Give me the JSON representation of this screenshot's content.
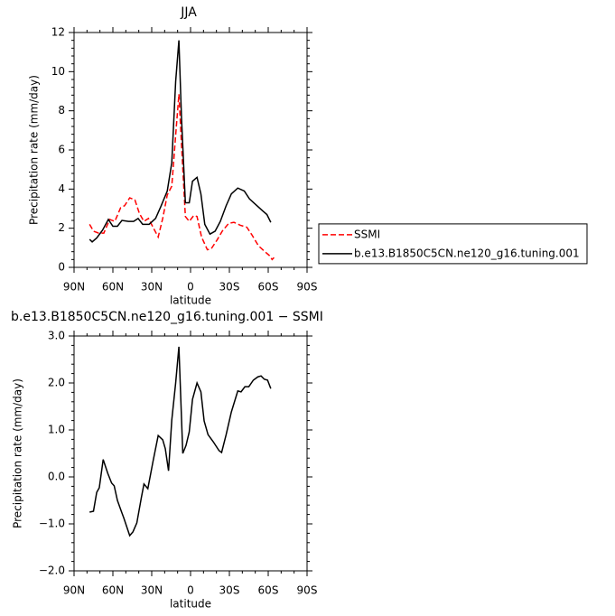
{
  "chart_data": [
    {
      "type": "line",
      "title": "JJA",
      "xlabel": "latitude",
      "ylabel": "Precipitation rate (mm/day)",
      "xlim": [
        90,
        -90
      ],
      "ylim": [
        0,
        12
      ],
      "xticks": [
        {
          "value": 90,
          "label": "90N"
        },
        {
          "value": 60,
          "label": "60N"
        },
        {
          "value": 30,
          "label": "30N"
        },
        0,
        {
          "value": -30,
          "label": "30S"
        },
        {
          "value": -60,
          "label": "60S"
        },
        {
          "value": -90,
          "label": "90S"
        }
      ],
      "yticks": [
        0,
        2,
        4,
        6,
        8,
        10,
        12
      ],
      "legend": "right",
      "series": [
        {
          "name": "SSMI",
          "color": "#ff0000",
          "linestyle": "dashed",
          "x": [
            78,
            75,
            71,
            67,
            62.5,
            58.5,
            54,
            51,
            47,
            43,
            39.5,
            36,
            32.5,
            29,
            25,
            21.5,
            18,
            14.5,
            11.5,
            9,
            7,
            4,
            1,
            -2.5,
            -5,
            -8.5,
            -13,
            -16,
            -20.5,
            -24.5,
            -29.5,
            -33.5,
            -38.5,
            -43.5,
            -47.5,
            -52.5,
            -57.5,
            -61,
            -63,
            -64.5
          ],
          "values": [
            2.2,
            1.85,
            1.75,
            1.75,
            2.45,
            2.35,
            3.05,
            3.15,
            3.55,
            3.45,
            2.75,
            2.35,
            2.5,
            2.05,
            1.55,
            2.5,
            3.7,
            4.15,
            6.75,
            8.85,
            6.3,
            2.6,
            2.35,
            2.65,
            2.6,
            1.55,
            0.9,
            0.95,
            1.4,
            1.85,
            2.25,
            2.3,
            2.15,
            2.05,
            1.65,
            1.1,
            0.8,
            0.6,
            0.4,
            0.5
          ]
        },
        {
          "name": "b.e13.B1850C5CN.ne120_g16.tuning.001",
          "color": "#000000",
          "linestyle": "solid",
          "x": [
            78,
            76,
            72.5,
            68,
            63.5,
            60,
            56.5,
            53,
            48,
            44,
            40.5,
            37,
            32,
            27,
            23,
            18,
            14.5,
            11.5,
            9,
            7,
            4,
            1,
            -1.5,
            -5,
            -8,
            -11,
            -15,
            -19,
            -23,
            -27.5,
            -31.5,
            -36.5,
            -41.5,
            -45.5,
            -50.5,
            -55.5,
            -59,
            -62
          ],
          "values": [
            1.43,
            1.3,
            1.5,
            1.9,
            2.45,
            2.1,
            2.1,
            2.4,
            2.35,
            2.35,
            2.5,
            2.2,
            2.2,
            2.5,
            3.1,
            3.9,
            5.35,
            9.5,
            11.6,
            7.65,
            3.3,
            3.3,
            4.4,
            4.6,
            3.75,
            2.2,
            1.7,
            1.85,
            2.35,
            3.15,
            3.75,
            4.05,
            3.9,
            3.5,
            3.2,
            2.9,
            2.7,
            2.3
          ]
        }
      ]
    },
    {
      "type": "line",
      "title": "b.e13.B1850C5CN.ne120_g16.tuning.001 − SSMI",
      "xlabel": "latitude",
      "ylabel": "Precipitation rate (mm/day)",
      "xlim": [
        90,
        -90
      ],
      "ylim": [
        -2,
        3
      ],
      "xticks": [
        {
          "value": 90,
          "label": "90N"
        },
        {
          "value": 60,
          "label": "60N"
        },
        {
          "value": 30,
          "label": "30N"
        },
        0,
        {
          "value": -30,
          "label": "30S"
        },
        {
          "value": -60,
          "label": "60S"
        },
        {
          "value": -90,
          "label": "90S"
        }
      ],
      "yticks": [
        {
          "value": -2,
          "label": "−2.0"
        },
        {
          "value": -1,
          "label": "−1.0"
        },
        {
          "value": 0,
          "label": "0.0"
        },
        {
          "value": 1,
          "label": "1.0"
        },
        {
          "value": 2,
          "label": "2.0"
        },
        {
          "value": 3,
          "label": "3.0"
        }
      ],
      "series": [
        {
          "color": "#000000",
          "linestyle": "solid",
          "x": [
            78,
            75,
            72.5,
            70.5,
            67.5,
            64,
            61,
            59,
            56.5,
            53.5,
            51.5,
            47,
            44.5,
            41.5,
            38,
            36,
            33,
            29,
            25,
            21.5,
            19.5,
            17,
            14.5,
            11.5,
            9,
            6,
            3.5,
            1,
            -1.5,
            -5,
            -8,
            -10.5,
            -13.5,
            -17.5,
            -22,
            -24,
            -27.5,
            -31.5,
            -36.5,
            -39,
            -42,
            -45,
            -48.5,
            -52,
            -54.5,
            -57,
            -59.5,
            -62
          ],
          "values": [
            -0.75,
            -0.73,
            -0.33,
            -0.23,
            0.37,
            0.08,
            -0.13,
            -0.19,
            -0.5,
            -0.73,
            -0.88,
            -1.25,
            -1.17,
            -0.98,
            -0.44,
            -0.15,
            -0.25,
            0.33,
            0.88,
            0.79,
            0.6,
            0.13,
            1.21,
            2.0,
            2.77,
            0.5,
            0.67,
            0.96,
            1.65,
            2.0,
            1.81,
            1.19,
            0.9,
            0.75,
            0.56,
            0.52,
            0.9,
            1.38,
            1.83,
            1.81,
            1.92,
            1.92,
            2.06,
            2.13,
            2.15,
            2.08,
            2.06,
            1.88
          ]
        }
      ]
    }
  ]
}
